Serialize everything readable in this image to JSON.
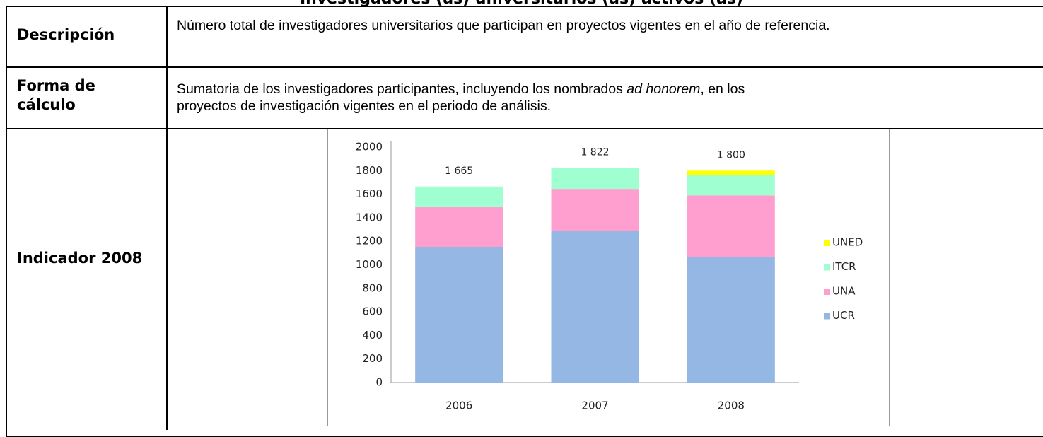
{
  "title": "Investigadores (as) universitarios (as) activos (as)",
  "table": {
    "rows": [
      [
        "Descripción",
        "Número total de investigadores universitarios que participan en proyectos vigentes en el año de referencia."
      ],
      [
        "Forma de cálculo",
        [
          "Sumatoria de los investigadores participantes, incluyendo los nombrados ",
          "ad honorem",
          ", en los",
          "proyectos de investigación vigentes en el periodo de análisis."
        ]
      ],
      [
        "Indicador 2008"
      ]
    ]
  },
  "chart_data": {
    "type": "stacked_bar",
    "categories": [
      "2006",
      "2007",
      "2008"
    ],
    "series": [
      {
        "name": "UCR",
        "color": "#95b7e3",
        "values": [
          1150,
          1290,
          1065
        ]
      },
      {
        "name": "UNA",
        "color": "#ff9fcf",
        "values": [
          340,
          355,
          525
        ]
      },
      {
        "name": "ITCR",
        "color": "#a0ffd0",
        "values": [
          175,
          177,
          170
        ]
      },
      {
        "name": "UNED",
        "color": "#ffff00",
        "values": [
          0,
          0,
          40
        ]
      }
    ],
    "totals": [
      1665,
      1822,
      1800
    ],
    "total_labels": [
      "1 665",
      "1 822",
      "1 800"
    ],
    "ylim": [
      0,
      2000
    ],
    "yticks": [
      0,
      200,
      400,
      600,
      800,
      1000,
      1200,
      1400,
      1600,
      1800,
      2000
    ],
    "grid": false,
    "legend": "right"
  }
}
